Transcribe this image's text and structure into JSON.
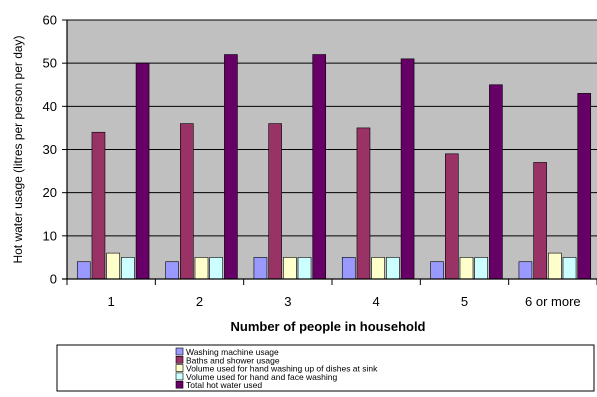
{
  "chart_data": {
    "type": "bar",
    "xlabel": "Number of people in household",
    "ylabel": "Hot water usage (litres per person per day)",
    "categories": [
      "1",
      "2",
      "3",
      "4",
      "5",
      "6 or more"
    ],
    "ylim": [
      0,
      60
    ],
    "yticks": [
      0,
      10,
      20,
      30,
      40,
      50,
      60
    ],
    "grid": true,
    "legend_position": "bottom",
    "series": [
      {
        "name": "Washing machine usage",
        "values": [
          4,
          4,
          5,
          5,
          4,
          4
        ]
      },
      {
        "name": "Baths and shower usage",
        "values": [
          34,
          36,
          36,
          35,
          29,
          27
        ]
      },
      {
        "name": "Volume used for hand washing up of dishes at sink",
        "values": [
          6,
          5,
          5,
          5,
          5,
          6
        ]
      },
      {
        "name": "Volume used for hand and face washing",
        "values": [
          5,
          5,
          5,
          5,
          5,
          5
        ]
      },
      {
        "name": "Total hot water used",
        "values": [
          50,
          52,
          52,
          51,
          45,
          43
        ]
      }
    ],
    "colors": {
      "series": [
        "#9999ff",
        "#993366",
        "#ffffcc",
        "#ccffff",
        "#660066"
      ],
      "plot_background": "#c0c0c0",
      "axis": "#000000"
    }
  }
}
